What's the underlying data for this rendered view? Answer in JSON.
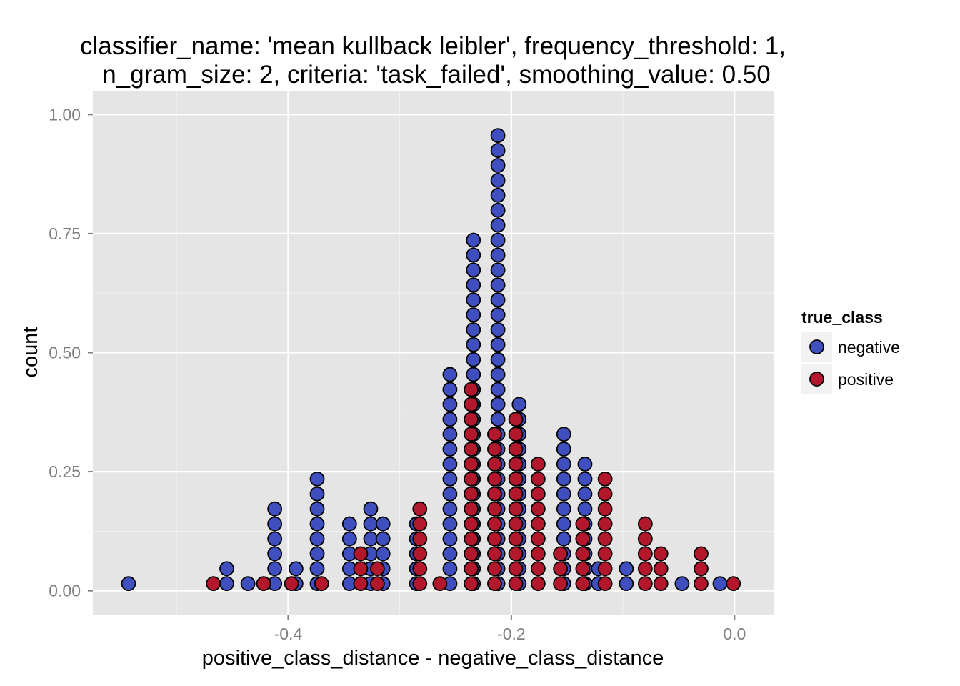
{
  "chart_data": {
    "type": "scatter",
    "subtype": "dotplot",
    "title_lines": [
      "classifier_name: 'mean kullback leibler', frequency_threshold: 1,",
      "n_gram_size: 2, criteria: 'task_failed', smoothing_value: 0.50"
    ],
    "xlabel": "positive_class_distance - negative_class_distance",
    "ylabel": "count",
    "xlim": [
      -0.575,
      0.035
    ],
    "ylim": [
      -0.05,
      1.05
    ],
    "x_ticks": [
      -0.4,
      -0.2,
      0.0
    ],
    "x_tick_labels": [
      "-0.4",
      "-0.2",
      "0.0"
    ],
    "y_ticks": [
      0.0,
      0.25,
      0.5,
      0.75,
      1.0
    ],
    "y_tick_labels": [
      "0.00",
      "0.25",
      "0.50",
      "0.75",
      "1.00"
    ],
    "grid": true,
    "background": "#e5e5e5",
    "legend": {
      "title": "true_class",
      "position": "right"
    },
    "series": [
      {
        "name": "negative",
        "color": "#3f4fbf",
        "stacks": [
          {
            "x": -0.543,
            "n": 1
          },
          {
            "x": -0.455,
            "n": 2
          },
          {
            "x": -0.436,
            "n": 1
          },
          {
            "x": -0.412,
            "n": 6
          },
          {
            "x": -0.393,
            "n": 2
          },
          {
            "x": -0.374,
            "n": 8
          },
          {
            "x": -0.345,
            "n": 5
          },
          {
            "x": -0.326,
            "n": 6
          },
          {
            "x": -0.315,
            "n": 5
          },
          {
            "x": -0.285,
            "n": 5
          },
          {
            "x": -0.255,
            "n": 15
          },
          {
            "x": -0.234,
            "n": 24
          },
          {
            "x": -0.212,
            "n": 31
          },
          {
            "x": -0.193,
            "n": 13
          },
          {
            "x": -0.153,
            "n": 11
          },
          {
            "x": -0.134,
            "n": 9
          },
          {
            "x": -0.122,
            "n": 2
          },
          {
            "x": -0.097,
            "n": 2
          },
          {
            "x": -0.047,
            "n": 1
          },
          {
            "x": -0.013,
            "n": 1
          }
        ]
      },
      {
        "name": "positive",
        "color": "#b2172b",
        "stacks": [
          {
            "x": -0.467,
            "n": 1
          },
          {
            "x": -0.422,
            "n": 1
          },
          {
            "x": -0.397,
            "n": 1
          },
          {
            "x": -0.37,
            "n": 1
          },
          {
            "x": -0.335,
            "n": 3
          },
          {
            "x": -0.32,
            "n": 2
          },
          {
            "x": -0.282,
            "n": 6
          },
          {
            "x": -0.264,
            "n": 1
          },
          {
            "x": -0.236,
            "n": 14
          },
          {
            "x": -0.215,
            "n": 11
          },
          {
            "x": -0.196,
            "n": 12
          },
          {
            "x": -0.176,
            "n": 9
          },
          {
            "x": -0.156,
            "n": 3
          },
          {
            "x": -0.136,
            "n": 5
          },
          {
            "x": -0.116,
            "n": 8
          },
          {
            "x": -0.08,
            "n": 5
          },
          {
            "x": -0.066,
            "n": 3
          },
          {
            "x": -0.03,
            "n": 3
          },
          {
            "x": -0.001,
            "n": 1
          }
        ]
      }
    ]
  }
}
